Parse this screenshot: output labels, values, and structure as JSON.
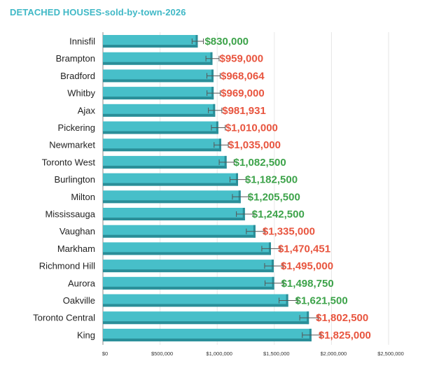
{
  "chart_data": {
    "type": "bar",
    "orientation": "horizontal",
    "title": "DETACHED HOUSES-sold-by-town-2026",
    "categories": [
      "Innisfil",
      "Brampton",
      "Bradford",
      "Whitby",
      "Ajax",
      "Pickering",
      "Newmarket",
      "Toronto West",
      "Burlington",
      "Milton",
      "Mississauga",
      "Vaughan",
      "Markham",
      "Richmond Hill",
      "Aurora",
      "Oakville",
      "Toronto Central",
      "King"
    ],
    "values": [
      830000,
      959000,
      968064,
      969000,
      981931,
      1010000,
      1035000,
      1082500,
      1182500,
      1205500,
      1242500,
      1335000,
      1470451,
      1495000,
      1498750,
      1621500,
      1802500,
      1825000
    ],
    "value_labels": [
      "$830,000",
      "$959,000",
      "$968,064",
      "$969,000",
      "$981,931",
      "$1,010,000",
      "$1,035,000",
      "$1,082,500",
      "$1,182,500",
      "$1,205,500",
      "$1,242,500",
      "$1,335,000",
      "$1,470,451",
      "$1,495,000",
      "$1,498,750",
      "$1,621,500",
      "$1,802,500",
      "$1,825,000"
    ],
    "label_status": [
      "green",
      "red",
      "red",
      "red",
      "red",
      "red",
      "red",
      "green",
      "green",
      "green",
      "green",
      "red",
      "red",
      "red",
      "green",
      "green",
      "red",
      "red"
    ],
    "x_ticks": [
      0,
      500000,
      1000000,
      1500000,
      2000000,
      2500000
    ],
    "x_tick_labels": [
      "$0",
      "$500,000",
      "$1,000,000",
      "$1,500,000",
      "$2,000,000",
      "$2,500,000"
    ],
    "xlim": [
      0,
      2500000
    ],
    "grid": true,
    "error_bars": true,
    "colors": {
      "bar": "#47bfc9",
      "bar_shadow": "#2a8e98",
      "green": "#3da34a",
      "red": "#e8553f",
      "title": "#3fb8c6",
      "grid": "#e6e6e6",
      "axis": "#888888"
    }
  }
}
